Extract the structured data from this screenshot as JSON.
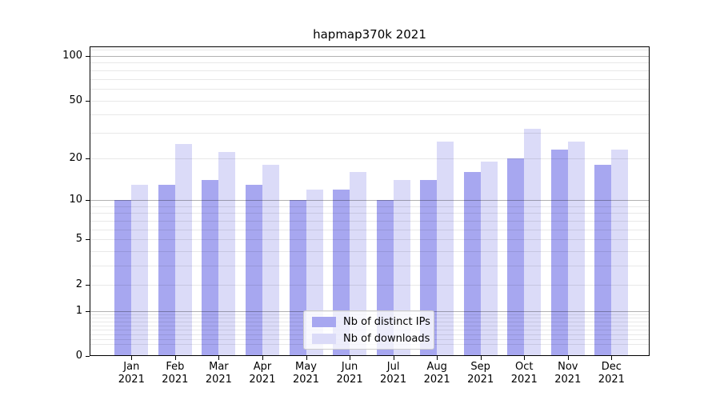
{
  "chart_data": {
    "type": "bar",
    "title": "hapmap370k 2021",
    "categories": [
      "Jan",
      "Feb",
      "Mar",
      "Apr",
      "May",
      "Jun",
      "Jul",
      "Aug",
      "Sep",
      "Oct",
      "Nov",
      "Dec"
    ],
    "x_year_label": "2021",
    "series": [
      {
        "name": "Nb of distinct IPs",
        "color": "#a7a7f0",
        "values": [
          10,
          13,
          14,
          13,
          10,
          12,
          10,
          14,
          16,
          20,
          23,
          18
        ]
      },
      {
        "name": "Nb of downloads",
        "color": "#dbdbf8",
        "values": [
          13,
          25,
          22,
          18,
          12,
          16,
          14,
          26,
          19,
          32,
          26,
          23
        ]
      }
    ],
    "xlabel": "",
    "ylabel": "",
    "yscale": "log1p",
    "ylim": [
      0,
      116
    ],
    "yticks": [
      0,
      1,
      2,
      5,
      10,
      20,
      50,
      100
    ],
    "ytick_labels": [
      "0",
      "1",
      "2",
      "5",
      "10",
      "20",
      "50",
      "100"
    ],
    "major_gridlines": [
      1,
      10,
      100
    ],
    "minor_gridlines": [
      0.2,
      0.3,
      0.4,
      0.5,
      0.6,
      0.7,
      0.8,
      0.9,
      2,
      3,
      4,
      5,
      6,
      7,
      8,
      9,
      20,
      30,
      40,
      50,
      60,
      70,
      80,
      90,
      110
    ],
    "grid": true,
    "legend_position": "lower center"
  }
}
